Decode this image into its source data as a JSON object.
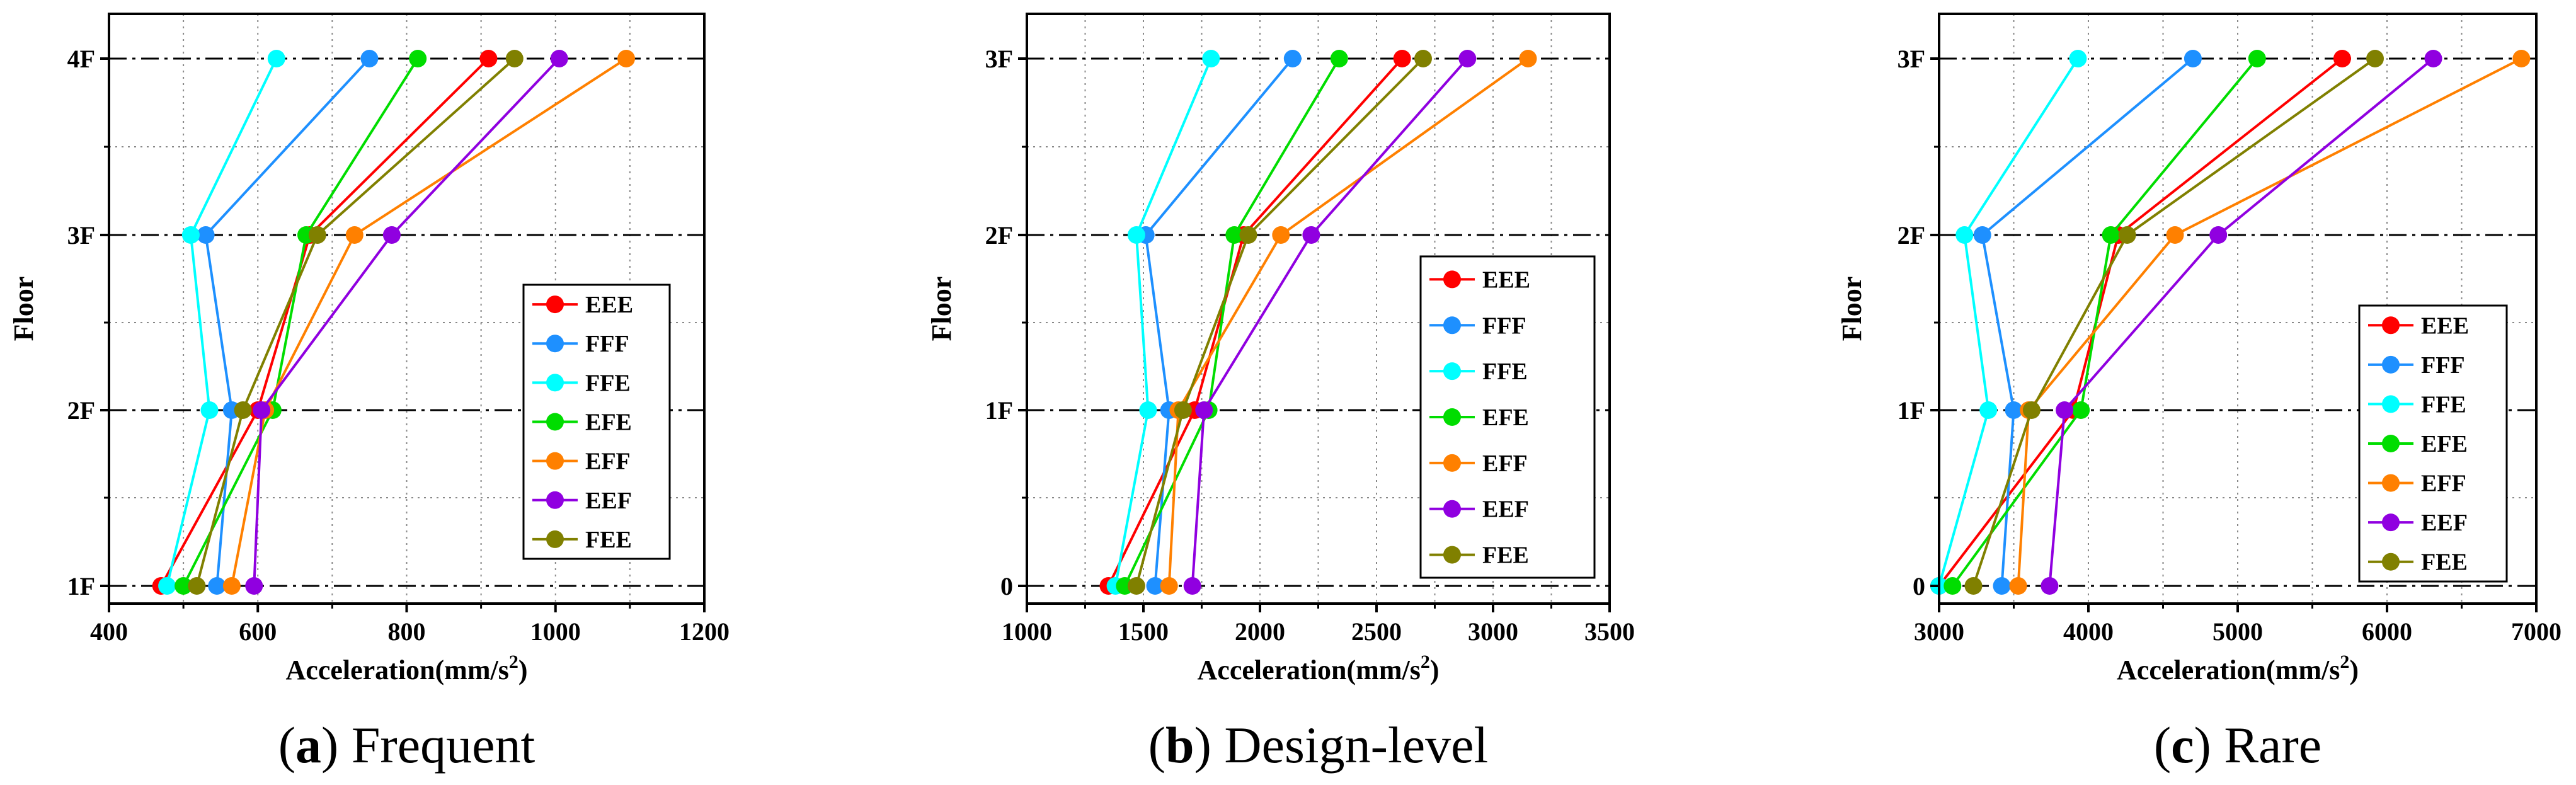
{
  "chart_data": [
    {
      "type": "line",
      "title": "Frequent",
      "caption_letter": "a",
      "xlabel": "Acceleration(mm/s",
      "xlabel_sup": "2",
      "xlabel_end": ")",
      "ylabel": "Floor",
      "xlim": [
        400,
        1200
      ],
      "xticks": [
        "400",
        "600",
        "800",
        "1000",
        "1200"
      ],
      "categories": [
        "1F",
        "2F",
        "3F",
        "4F"
      ],
      "legend_position": "lower-right",
      "series": [
        {
          "name": "EEE",
          "color": "#ff0000",
          "values": [
            470,
            600,
            670,
            910
          ]
        },
        {
          "name": "FFF",
          "color": "#1e90ff",
          "values": [
            545,
            565,
            530,
            750
          ]
        },
        {
          "name": "FFE",
          "color": "#00ffff",
          "values": [
            478,
            535,
            510,
            625
          ]
        },
        {
          "name": "EFE",
          "color": "#00dd00",
          "values": [
            500,
            620,
            665,
            815
          ]
        },
        {
          "name": "EFF",
          "color": "#ff8000",
          "values": [
            565,
            610,
            730,
            1095
          ]
        },
        {
          "name": "EEF",
          "color": "#9000e0",
          "values": [
            595,
            605,
            780,
            1005
          ]
        },
        {
          "name": "FEE",
          "color": "#808000",
          "values": [
            518,
            580,
            680,
            945
          ]
        }
      ]
    },
    {
      "type": "line",
      "title": "Design-level",
      "caption_letter": "b",
      "xlabel": "Acceleration(mm/s",
      "xlabel_sup": "2",
      "xlabel_end": ")",
      "ylabel": "Floor",
      "xlim": [
        1000,
        3500
      ],
      "xticks": [
        "1000",
        "1500",
        "2000",
        "2500",
        "3000",
        "3500"
      ],
      "categories": [
        "0",
        "1F",
        "2F",
        "3F"
      ],
      "legend_position": "lower-right",
      "series": [
        {
          "name": "EEE",
          "color": "#ff0000",
          "values": [
            1350,
            1720,
            1930,
            2610
          ]
        },
        {
          "name": "FFF",
          "color": "#1e90ff",
          "values": [
            1550,
            1610,
            1510,
            2140
          ]
        },
        {
          "name": "FFE",
          "color": "#00ffff",
          "values": [
            1380,
            1520,
            1470,
            1790
          ]
        },
        {
          "name": "EFE",
          "color": "#00dd00",
          "values": [
            1420,
            1780,
            1890,
            2340
          ]
        },
        {
          "name": "EFF",
          "color": "#ff8000",
          "values": [
            1610,
            1650,
            2090,
            3150
          ]
        },
        {
          "name": "EEF",
          "color": "#9000e0",
          "values": [
            1710,
            1760,
            2220,
            2890
          ]
        },
        {
          "name": "FEE",
          "color": "#808000",
          "values": [
            1470,
            1670,
            1950,
            2700
          ]
        }
      ]
    },
    {
      "type": "line",
      "title": "Rare",
      "caption_letter": "c",
      "xlabel": "Acceleration(mm/s",
      "xlabel_sup": "2",
      "xlabel_end": ")",
      "ylabel": "Floor",
      "xlim": [
        3000,
        7000
      ],
      "xticks": [
        "3000",
        "4000",
        "5000",
        "6000",
        "7000"
      ],
      "categories": [
        "0",
        "1F",
        "2F",
        "3F"
      ],
      "legend_position": "lower-right",
      "series": [
        {
          "name": "EEE",
          "color": "#ff0000",
          "values": [
            3000,
            3900,
            4200,
            5700
          ]
        },
        {
          "name": "FFF",
          "color": "#1e90ff",
          "values": [
            3420,
            3500,
            3290,
            4700
          ]
        },
        {
          "name": "FFE",
          "color": "#00ffff",
          "values": [
            3000,
            3330,
            3170,
            3930
          ]
        },
        {
          "name": "EFE",
          "color": "#00dd00",
          "values": [
            3090,
            3950,
            4150,
            5130
          ]
        },
        {
          "name": "EFF",
          "color": "#ff8000",
          "values": [
            3530,
            3600,
            4580,
            6900
          ]
        },
        {
          "name": "EEF",
          "color": "#9000e0",
          "values": [
            3740,
            3840,
            4870,
            6310
          ]
        },
        {
          "name": "FEE",
          "color": "#808000",
          "values": [
            3230,
            3620,
            4260,
            5920
          ]
        }
      ]
    }
  ]
}
